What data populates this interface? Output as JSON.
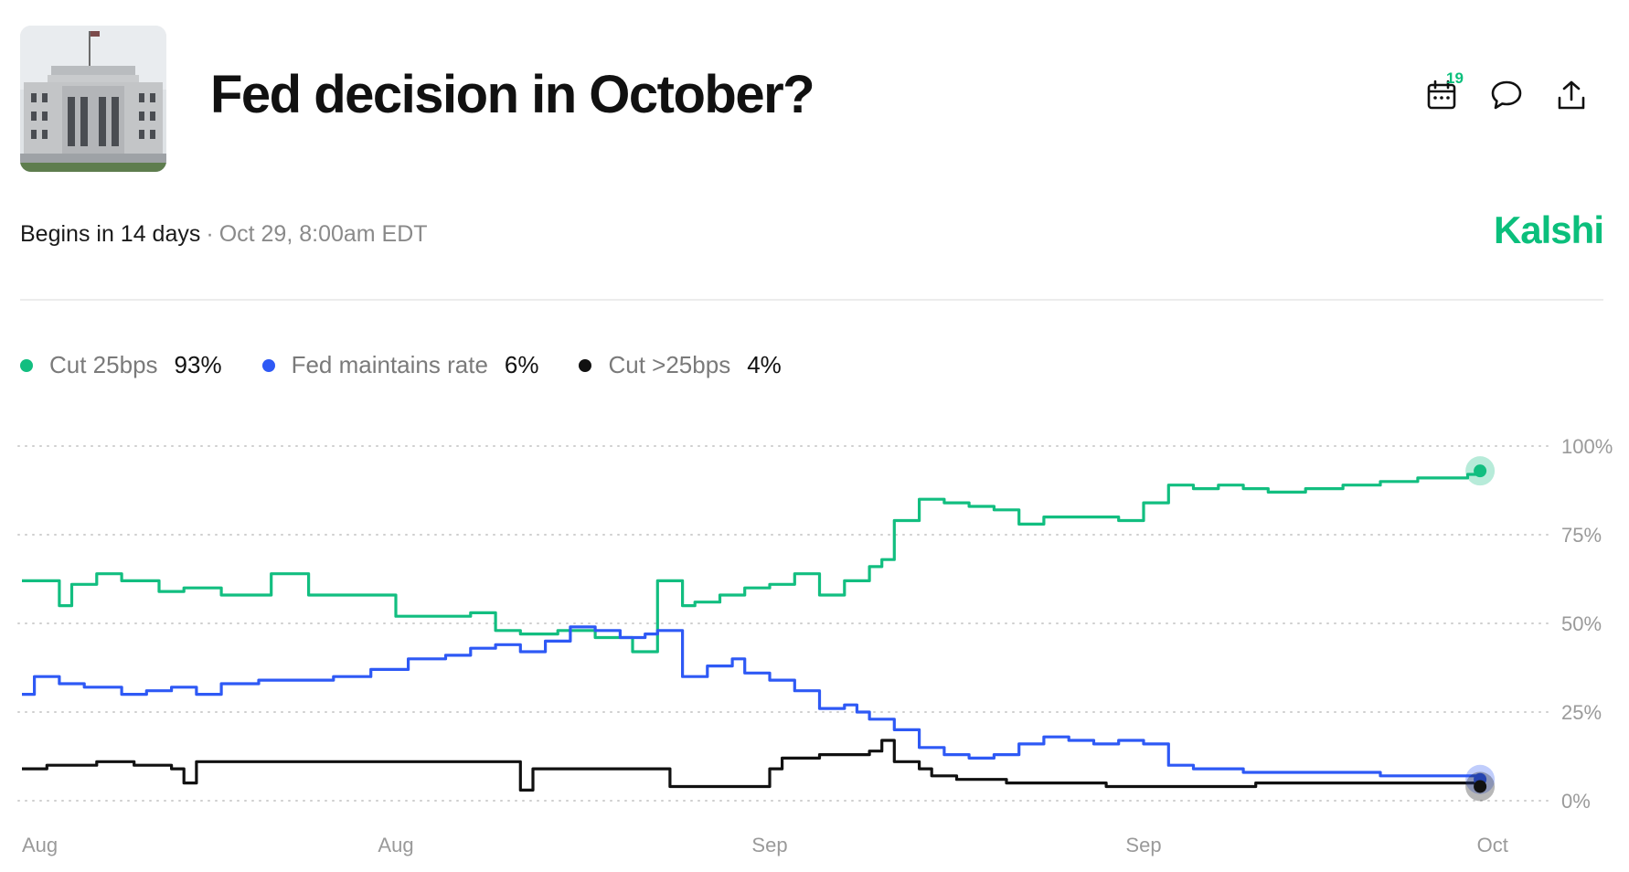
{
  "header": {
    "title": "Fed decision in October?",
    "thumbnail": "federal-reserve-building-image",
    "calendar_badge": "19",
    "icons": [
      "calendar-icon",
      "comment-icon",
      "share-icon"
    ]
  },
  "meta": {
    "begins": "Begins in 14 days",
    "separator": "·",
    "date": "Oct 29, 8:00am EDT"
  },
  "brand": {
    "name": "Kalshi",
    "color": "#0bbf7c"
  },
  "legend": [
    {
      "name": "Cut 25bps",
      "value": "93%",
      "color": "#12be80"
    },
    {
      "name": "Fed maintains rate",
      "value": "6%",
      "color": "#2e59f5"
    },
    {
      "name": "Cut >25bps",
      "value": "4%",
      "color": "#111111"
    }
  ],
  "chart_data": {
    "type": "line",
    "title": "",
    "xlabel": "",
    "ylabel": "",
    "ylim": [
      0,
      100
    ],
    "y_ticks": [
      "100%",
      "75%",
      "50%",
      "25%",
      "0%"
    ],
    "y_tick_values": [
      100,
      75,
      50,
      25,
      0
    ],
    "x_ticks": [
      "Aug",
      "Aug",
      "Sep",
      "Sep",
      "Oct"
    ],
    "x_tick_values": [
      0,
      30,
      60,
      90,
      118
    ],
    "x_range": [
      0,
      120
    ],
    "grid": true,
    "legend_position": "top-left",
    "series": [
      {
        "name": "Cut 25bps",
        "color": "#12be80",
        "x": [
          0,
          1,
          3,
          4,
          6,
          8,
          11,
          13,
          16,
          20,
          23,
          25,
          27,
          30,
          33,
          36,
          38,
          40,
          43,
          46,
          49,
          51,
          53,
          54,
          56,
          58,
          60,
          62,
          64,
          66,
          68,
          69,
          70,
          72,
          74,
          76,
          78,
          80,
          82,
          84,
          86,
          88,
          90,
          92,
          94,
          96,
          98,
          100,
          103,
          106,
          109,
          112,
          114,
          116,
          117
        ],
        "values": [
          62,
          62,
          55,
          61,
          64,
          62,
          59,
          60,
          58,
          64,
          58,
          58,
          58,
          52,
          52,
          53,
          48,
          47,
          48,
          46,
          42,
          62,
          55,
          56,
          58,
          60,
          61,
          64,
          58,
          62,
          66,
          68,
          79,
          85,
          84,
          83,
          82,
          78,
          80,
          80,
          80,
          79,
          84,
          89,
          88,
          89,
          88,
          87,
          88,
          89,
          90,
          91,
          91,
          92,
          93
        ]
      },
      {
        "name": "Fed maintains rate",
        "color": "#2e59f5",
        "x": [
          0,
          1,
          3,
          5,
          8,
          10,
          12,
          14,
          16,
          19,
          22,
          25,
          28,
          31,
          34,
          36,
          38,
          40,
          42,
          44,
          46,
          48,
          50,
          51,
          53,
          55,
          57,
          58,
          60,
          62,
          64,
          66,
          67,
          68,
          69,
          70,
          72,
          74,
          76,
          78,
          80,
          82,
          84,
          86,
          88,
          90,
          92,
          94,
          96,
          98,
          100,
          103,
          106,
          109,
          112,
          115,
          117
        ],
        "values": [
          30,
          35,
          33,
          32,
          30,
          31,
          32,
          30,
          33,
          34,
          34,
          35,
          37,
          40,
          41,
          43,
          44,
          42,
          45,
          49,
          48,
          46,
          47,
          48,
          35,
          38,
          40,
          36,
          34,
          31,
          26,
          27,
          25,
          23,
          23,
          20,
          15,
          13,
          12,
          13,
          16,
          18,
          17,
          16,
          17,
          16,
          10,
          9,
          9,
          8,
          8,
          8,
          8,
          7,
          7,
          7,
          6
        ]
      },
      {
        "name": "Cut >25bps",
        "color": "#111111",
        "x": [
          0,
          2,
          6,
          9,
          12,
          13,
          14,
          17,
          22,
          27,
          32,
          39,
          40,
          41,
          44,
          48,
          51,
          52,
          55,
          59,
          60,
          61,
          62,
          64,
          66,
          68,
          69,
          70,
          71,
          72,
          73,
          75,
          79,
          83,
          87,
          91,
          95,
          99,
          103,
          107,
          111,
          115,
          117
        ],
        "values": [
          9,
          10,
          11,
          10,
          9,
          5,
          11,
          11,
          11,
          11,
          11,
          11,
          3,
          9,
          9,
          9,
          9,
          4,
          4,
          4,
          9,
          12,
          12,
          13,
          13,
          14,
          17,
          11,
          11,
          9,
          7,
          6,
          5,
          5,
          4,
          4,
          4,
          5,
          5,
          5,
          5,
          5,
          4
        ]
      }
    ]
  }
}
